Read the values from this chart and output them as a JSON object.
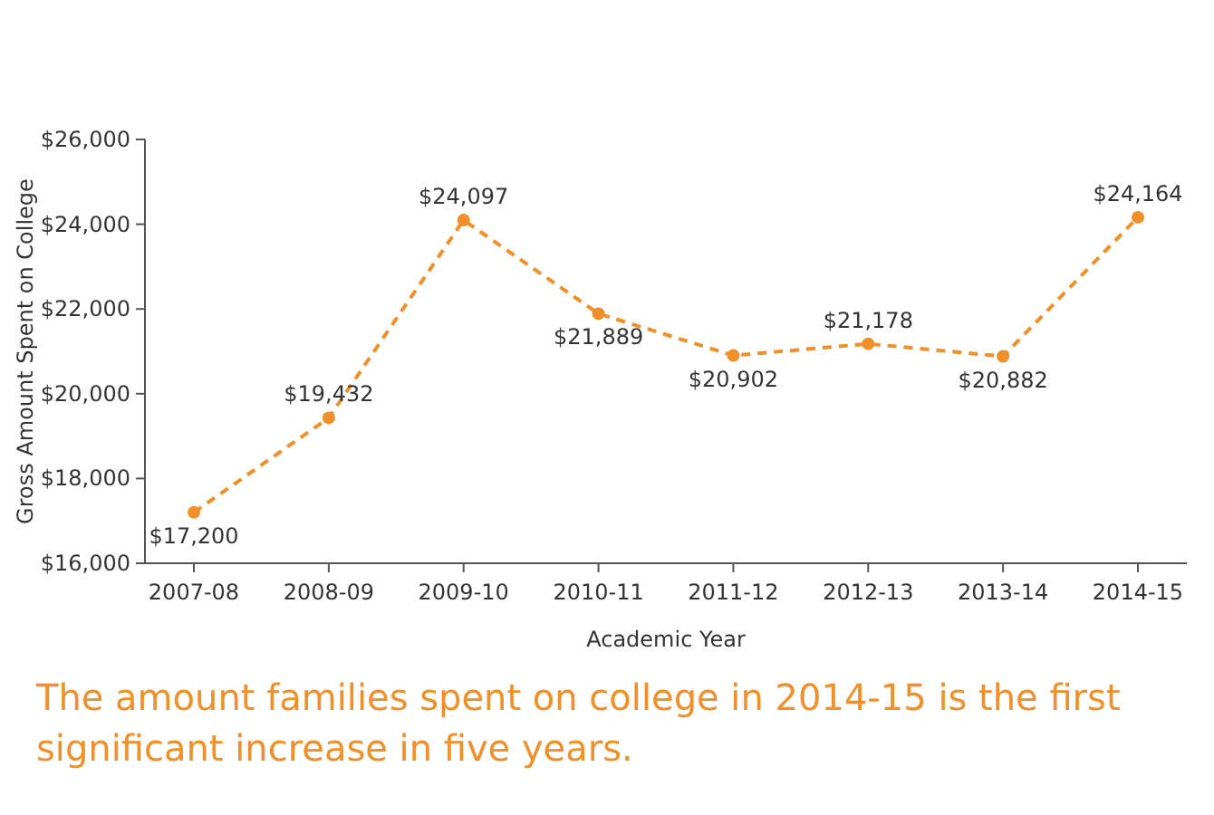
{
  "chart_data": {
    "type": "line",
    "xlabel": "Academic Year",
    "ylabel": "Gross Amount Spent on College",
    "categories": [
      "2007-08",
      "2008-09",
      "2009-10",
      "2010-11",
      "2011-12",
      "2012-13",
      "2013-14",
      "2014-15"
    ],
    "series": [
      {
        "color": "#f0902a",
        "values": [
          17200,
          19432,
          24097,
          21889,
          20902,
          21178,
          20882,
          24164
        ]
      }
    ],
    "value_labels": [
      "$17,200",
      "$19,432",
      "$24,097",
      "$21,889",
      "$20,902",
      "$21,178",
      "$20,882",
      "$24,164"
    ],
    "ylim": [
      16000,
      26000
    ],
    "yticks": [
      {
        "value": 16000,
        "label": "$16,000"
      },
      {
        "value": 18000,
        "label": "$18,000"
      },
      {
        "value": 20000,
        "label": "$20,000"
      },
      {
        "value": 22000,
        "label": "$22,000"
      },
      {
        "value": 24000,
        "label": "$24,000"
      },
      {
        "value": 26000,
        "label": "$26,000"
      }
    ],
    "marker": "circle",
    "line_style": "dashed",
    "grid": false,
    "annotations": [
      "The amount families spent on college in 2014-15 is the first significant increase in five years."
    ]
  }
}
